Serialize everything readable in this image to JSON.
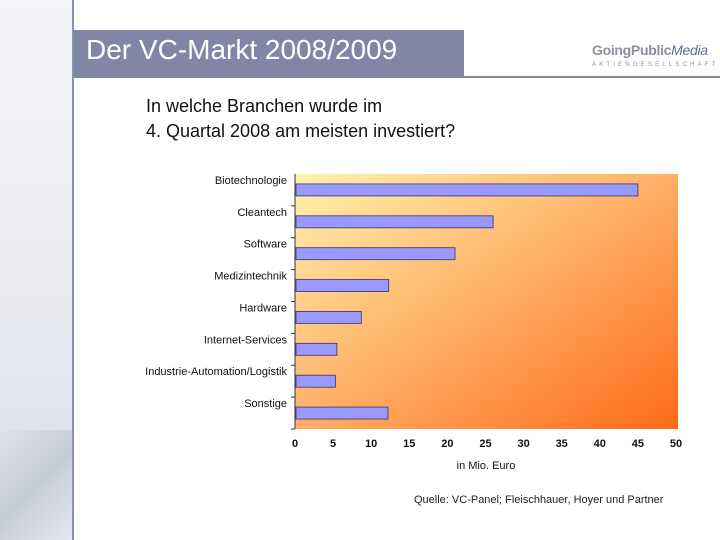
{
  "header": {
    "title": "Der VC-Markt 2008/2009"
  },
  "logo": {
    "name_part1": "GoingPublic",
    "name_part2": "Media",
    "subtitle": "AKTIENGESELLSCHAFT"
  },
  "question": {
    "line1": "In welche Branchen wurde im",
    "line2": "4. Quartal 2008 am meisten investiert?"
  },
  "chart_data": {
    "type": "bar",
    "orientation": "horizontal",
    "categories": [
      "Biotechnologie",
      "Cleantech",
      "Software",
      "Medizintechnik",
      "Hardware",
      "Internet-Services",
      "Industrie-Automation/Logistik",
      "Sonstige"
    ],
    "values": [
      45,
      26,
      21,
      12.3,
      8.7,
      5.5,
      5.3,
      12.2
    ],
    "xlabel": "in Mio. Euro",
    "ylabel": "",
    "xlim": [
      0,
      50
    ],
    "xticks": [
      "0",
      "5",
      "10",
      "15",
      "20",
      "25",
      "30",
      "35",
      "40",
      "45",
      "50"
    ],
    "grid": false,
    "bar_color": "#9999ff",
    "background_gradient": [
      "#fff3b0",
      "#ff6a1a"
    ]
  },
  "source": {
    "text": "Quelle: VC-Panel; Fleischhauer, Hoyer und Partner"
  }
}
